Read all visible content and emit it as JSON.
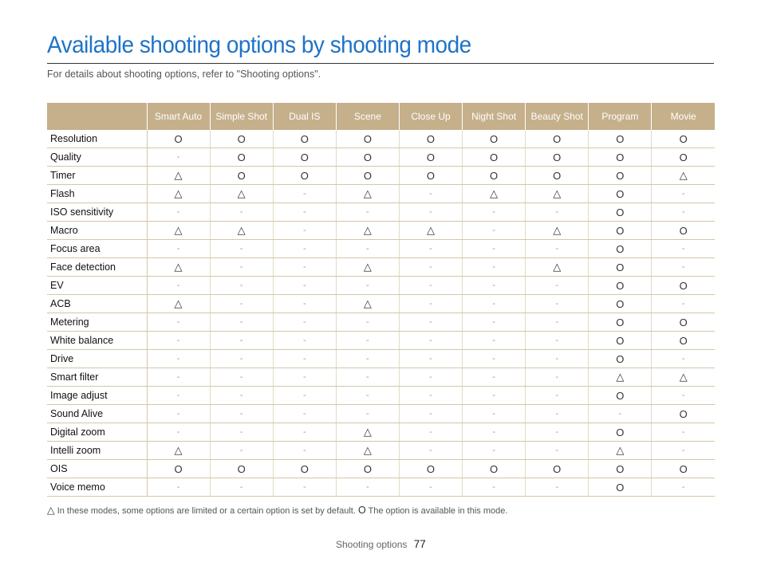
{
  "page": {
    "title": "Available shooting options by shooting mode",
    "subtitle": "For details about shooting options, refer to \"Shooting options\"."
  },
  "table": {
    "columns": [
      "Smart Auto",
      "Simple Shot",
      "Dual IS",
      "Scene",
      "Close Up",
      "Night Shot",
      "Beauty Shot",
      "Program",
      "Movie"
    ],
    "rows": [
      {
        "feature": "Resolution",
        "cells": [
          "O",
          "O",
          "O",
          "O",
          "O",
          "O",
          "O",
          "O",
          "O"
        ]
      },
      {
        "feature": "Quality",
        "cells": [
          "-",
          "O",
          "O",
          "O",
          "O",
          "O",
          "O",
          "O",
          "O"
        ]
      },
      {
        "feature": "Timer",
        "cells": [
          "△",
          "O",
          "O",
          "O",
          "O",
          "O",
          "O",
          "O",
          "△"
        ]
      },
      {
        "feature": "Flash",
        "cells": [
          "△",
          "△",
          "-",
          "△",
          "-",
          "△",
          "△",
          "O",
          "-"
        ]
      },
      {
        "feature": "ISO sensitivity",
        "cells": [
          "-",
          "-",
          "-",
          "-",
          "-",
          "-",
          "-",
          "O",
          "-"
        ]
      },
      {
        "feature": "Macro",
        "cells": [
          "△",
          "△",
          "-",
          "△",
          "△",
          "-",
          "△",
          "O",
          "O"
        ]
      },
      {
        "feature": "Focus area",
        "cells": [
          "-",
          "-",
          "-",
          "-",
          "-",
          "-",
          "-",
          "O",
          "-"
        ]
      },
      {
        "feature": "Face detection",
        "cells": [
          "△",
          "-",
          "-",
          "△",
          "-",
          "-",
          "△",
          "O",
          "-"
        ]
      },
      {
        "feature": "EV",
        "cells": [
          "-",
          "-",
          "-",
          "-",
          "-",
          "-",
          "-",
          "O",
          "O"
        ]
      },
      {
        "feature": "ACB",
        "cells": [
          "△",
          "-",
          "-",
          "△",
          "-",
          "-",
          "-",
          "O",
          "-"
        ]
      },
      {
        "feature": "Metering",
        "cells": [
          "-",
          "-",
          "-",
          "-",
          "-",
          "-",
          "-",
          "O",
          "O"
        ]
      },
      {
        "feature": "White balance",
        "cells": [
          "-",
          "-",
          "-",
          "-",
          "-",
          "-",
          "-",
          "O",
          "O"
        ]
      },
      {
        "feature": "Drive",
        "cells": [
          "-",
          "-",
          "-",
          "-",
          "-",
          "-",
          "-",
          "O",
          "-"
        ]
      },
      {
        "feature": "Smart filter",
        "cells": [
          "-",
          "-",
          "-",
          "-",
          "-",
          "-",
          "-",
          "△",
          "△"
        ]
      },
      {
        "feature": "Image adjust",
        "cells": [
          "-",
          "-",
          "-",
          "-",
          "-",
          "-",
          "-",
          "O",
          "-"
        ]
      },
      {
        "feature": "Sound Alive",
        "cells": [
          "-",
          "-",
          "-",
          "-",
          "-",
          "-",
          "-",
          "-",
          "O"
        ]
      },
      {
        "feature": "Digital zoom",
        "cells": [
          "-",
          "-",
          "-",
          "△",
          "-",
          "-",
          "-",
          "O",
          "-"
        ]
      },
      {
        "feature": "Intelli zoom",
        "cells": [
          "△",
          "-",
          "-",
          "△",
          "-",
          "-",
          "-",
          "△",
          "-"
        ]
      },
      {
        "feature": "OIS",
        "cells": [
          "O",
          "O",
          "O",
          "O",
          "O",
          "O",
          "O",
          "O",
          "O"
        ]
      },
      {
        "feature": "Voice memo",
        "cells": [
          "-",
          "-",
          "-",
          "-",
          "-",
          "-",
          "-",
          "O",
          "-"
        ]
      }
    ]
  },
  "legend": {
    "limited_symbol": "△",
    "limited_text": "In these modes, some options are limited or a certain option is set by default.",
    "available_symbol": "O",
    "available_text": "The option is available in this mode."
  },
  "footer": {
    "section": "Shooting options",
    "page_number": "77"
  }
}
